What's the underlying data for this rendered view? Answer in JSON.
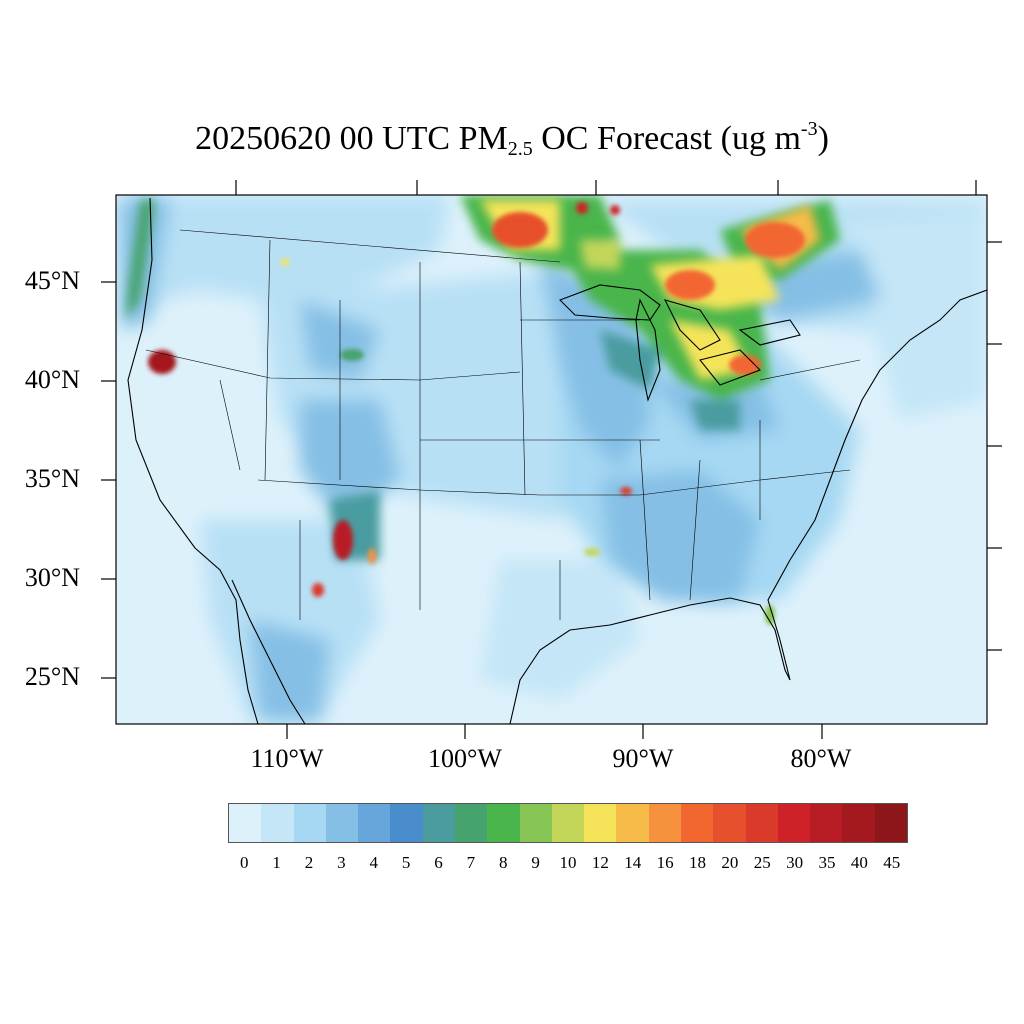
{
  "title": {
    "date_time": "20250620 00 UTC PM",
    "sub": "2.5",
    "mid": " OC Forecast (ug m",
    "sup": "-3",
    "end": ")"
  },
  "axes": {
    "lat_labels": [
      "45°N",
      "40°N",
      "35°N",
      "30°N",
      "25°N"
    ],
    "lon_labels": [
      "110°W",
      "100°W",
      "90°W",
      "80°W"
    ]
  },
  "colorbar": {
    "labels": [
      "0",
      "1",
      "2",
      "3",
      "4",
      "5",
      "6",
      "7",
      "8",
      "9",
      "10",
      "12",
      "14",
      "16",
      "18",
      "20",
      "25",
      "30",
      "35",
      "40",
      "45"
    ],
    "colors": [
      "#ddf1fb",
      "#c4e6f7",
      "#a6d8f3",
      "#85bfe5",
      "#67a6da",
      "#4a8dcd",
      "#4a9c9f",
      "#47a36d",
      "#4ab54b",
      "#86c453",
      "#c3d65a",
      "#f5e45a",
      "#f7bb4a",
      "#f6923d",
      "#f26630",
      "#e6502c",
      "#d93a2a",
      "#cf2128",
      "#b81d25",
      "#a3191f",
      "#8c161a"
    ]
  },
  "map_legend": {
    "variable": "PM2.5 OC",
    "units": "ug m-3",
    "projection_region": "CONUS"
  }
}
